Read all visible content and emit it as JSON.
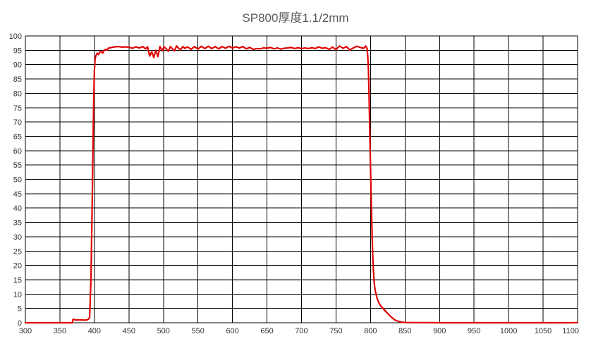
{
  "chart_data": {
    "type": "line",
    "title": "SP800厚度1.1/2mm",
    "xlabel": "",
    "ylabel": "",
    "xlim": [
      300,
      1100
    ],
    "ylim": [
      0,
      100
    ],
    "x_ticks": [
      300,
      350,
      400,
      450,
      500,
      550,
      600,
      650,
      700,
      750,
      800,
      850,
      900,
      950,
      1000,
      1050,
      1100
    ],
    "y_ticks": [
      0,
      5,
      10,
      15,
      20,
      25,
      30,
      35,
      40,
      45,
      50,
      55,
      60,
      65,
      70,
      75,
      80,
      85,
      90,
      95,
      100
    ],
    "grid": true,
    "legend": "none",
    "series": [
      {
        "color": "#e00000",
        "x": [
          300,
          368,
          369,
          372,
          380,
          386,
          389,
          391,
          393,
          395,
          396,
          397,
          398,
          399,
          400,
          401,
          402,
          404,
          406,
          408,
          410,
          412,
          414,
          416,
          418,
          420,
          425,
          430,
          435,
          440,
          445,
          450,
          455,
          460,
          465,
          470,
          474,
          477,
          480,
          483,
          486,
          489,
          492,
          495,
          498,
          501,
          504,
          507,
          510,
          513,
          516,
          519,
          522,
          525,
          528,
          531,
          535,
          540,
          545,
          550,
          555,
          560,
          565,
          570,
          575,
          580,
          585,
          590,
          595,
          600,
          605,
          610,
          615,
          620,
          625,
          630,
          635,
          640,
          645,
          650,
          655,
          660,
          665,
          670,
          675,
          680,
          685,
          690,
          695,
          700,
          705,
          710,
          715,
          720,
          725,
          730,
          735,
          740,
          745,
          750,
          755,
          760,
          765,
          770,
          775,
          780,
          785,
          790,
          793,
          795,
          796,
          797,
          798,
          799,
          800,
          801,
          802,
          803,
          804,
          805,
          806,
          807,
          808,
          809,
          810,
          812,
          815,
          818,
          820,
          825,
          830,
          835,
          840,
          845,
          850,
          860,
          880,
          900,
          950,
          1000,
          1050,
          1090,
          1100
        ],
        "values": [
          0,
          0,
          1.2,
          1.0,
          1.0,
          0.9,
          1.0,
          1.2,
          1.8,
          15,
          30,
          45,
          62,
          78,
          88,
          92,
          93,
          94,
          93.5,
          94.5,
          94.5,
          94,
          95,
          95.3,
          95,
          95.7,
          96,
          96.2,
          96.3,
          96.1,
          96.2,
          96.1,
          95.7,
          96.2,
          95.8,
          96.3,
          95.5,
          96.2,
          93,
          94.5,
          92.5,
          95,
          92.8,
          96.3,
          94.8,
          96.2,
          95.5,
          94.6,
          96.3,
          95.5,
          94.8,
          96.5,
          95.7,
          95.2,
          96.3,
          95.7,
          96.2,
          95.3,
          96.3,
          95.4,
          96.4,
          95.6,
          96.4,
          95.6,
          96.3,
          95.5,
          96.3,
          95.7,
          96.4,
          95.8,
          96.2,
          95.8,
          96.3,
          95.5,
          96.0,
          95.3,
          95.6,
          95.5,
          95.8,
          95.7,
          96.0,
          95.5,
          95.8,
          95.4,
          95.7,
          95.8,
          96.0,
          95.6,
          95.9,
          95.6,
          95.8,
          95.6,
          95.9,
          95.6,
          96.2,
          95.7,
          95.9,
          95.3,
          96.1,
          95.2,
          96.5,
          95.7,
          96.3,
          95.1,
          95.8,
          96.4,
          96.0,
          95.7,
          96.5,
          95.6,
          93,
          88,
          78,
          66,
          54,
          43,
          33,
          25,
          19,
          15,
          12.5,
          11,
          10,
          9,
          8.2,
          7,
          5.8,
          5,
          4.5,
          3.2,
          2.0,
          1.0,
          0.5,
          0.2,
          0.1,
          0.05,
          0.05,
          0,
          0,
          0,
          0,
          0,
          0.05
        ]
      }
    ]
  }
}
